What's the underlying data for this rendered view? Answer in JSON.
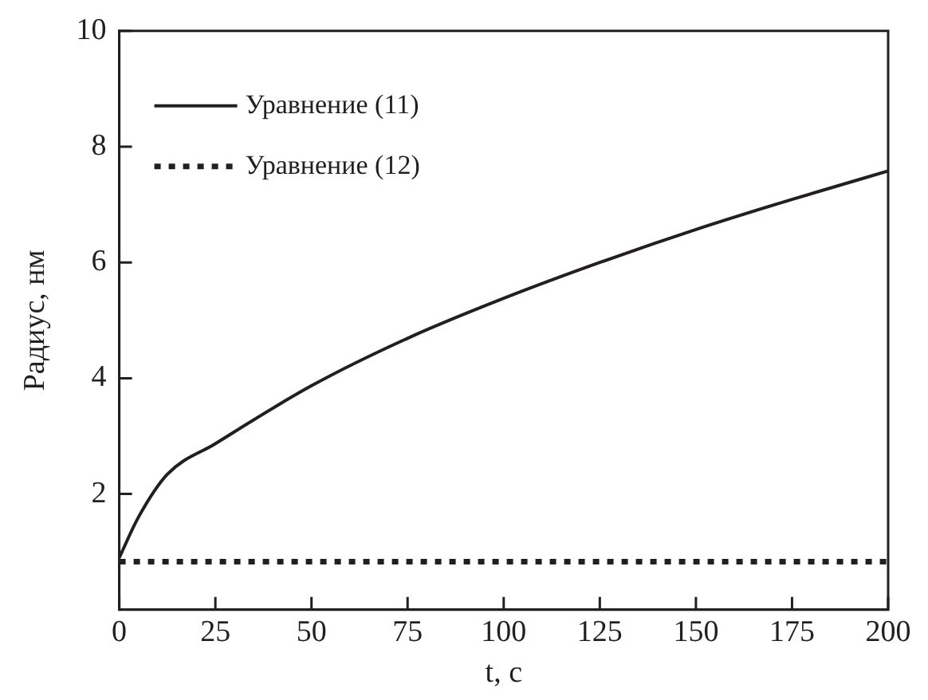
{
  "chart_data": {
    "type": "line",
    "xlabel": "t, с",
    "ylabel": "Радиус, нм",
    "xlim": [
      0,
      200
    ],
    "xticks": [
      0,
      25,
      50,
      75,
      100,
      125,
      150,
      175,
      200
    ],
    "ylim": [
      0,
      10
    ],
    "yticks": [
      2,
      4,
      6,
      8,
      10
    ],
    "legend": "top left",
    "grid": false,
    "marker": "none",
    "series": [
      {
        "name": "Уравнение (11)",
        "color": "#231f20",
        "line_style": "solid",
        "x": [
          0,
          5,
          12.5,
          25,
          50,
          75,
          100,
          125,
          150,
          175,
          200
        ],
        "values": [
          0.9,
          1.6,
          2.34,
          2.87,
          3.87,
          4.69,
          5.38,
          6.0,
          6.57,
          7.09,
          7.58
        ]
      },
      {
        "name": "Уравнение (12)",
        "color": "#231f20",
        "line_style": "dotted",
        "x": [
          0,
          200
        ],
        "values": [
          0.83,
          0.83
        ]
      }
    ]
  }
}
